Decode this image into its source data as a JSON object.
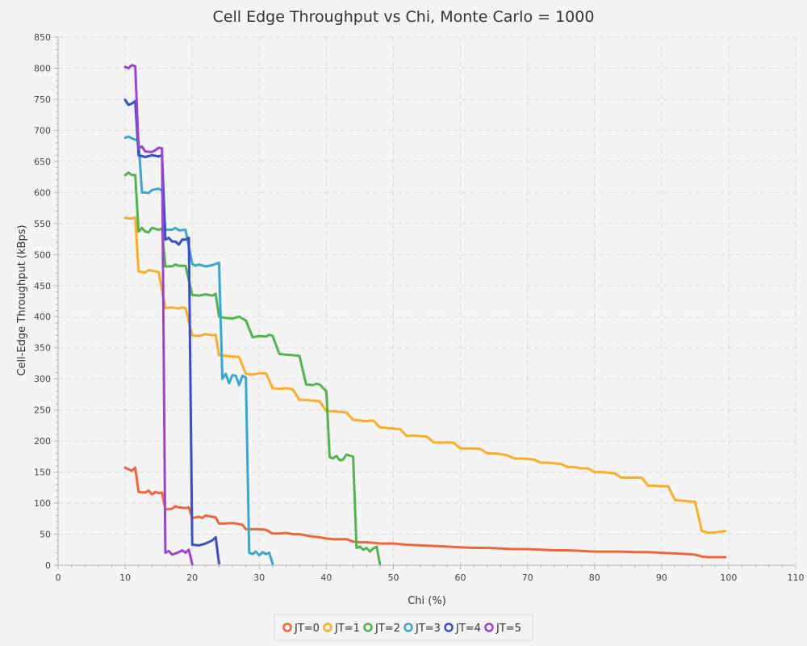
{
  "chart_data": {
    "type": "line",
    "title": "Cell Edge Throughput vs Chi, Monte Carlo = 1000",
    "xlabel": "Chi (%)",
    "ylabel": "Cell-Edge Throughput (kBps)",
    "xlim": [
      0,
      110
    ],
    "ylim": [
      0,
      850
    ],
    "x_ticks": [
      0,
      10,
      20,
      30,
      40,
      50,
      60,
      70,
      80,
      90,
      100,
      110
    ],
    "y_ticks": [
      0,
      50,
      100,
      150,
      200,
      250,
      300,
      350,
      400,
      450,
      500,
      550,
      600,
      650,
      700,
      750,
      800,
      850
    ],
    "grid": true,
    "legend_position": "bottom-center",
    "series": [
      {
        "name": "JT=0",
        "color": "#f0653b",
        "points": [
          [
            10,
            157
          ],
          [
            11,
            152
          ],
          [
            11.5,
            157
          ],
          [
            12,
            118
          ],
          [
            13,
            117
          ],
          [
            13.5,
            120
          ],
          [
            14,
            114
          ],
          [
            14.5,
            118
          ],
          [
            15,
            116
          ],
          [
            15.5,
            117
          ],
          [
            16,
            90
          ],
          [
            17,
            91
          ],
          [
            17.5,
            95
          ],
          [
            18,
            93
          ],
          [
            19,
            92
          ],
          [
            19.5,
            93
          ],
          [
            20,
            76
          ],
          [
            21,
            78
          ],
          [
            21.5,
            76
          ],
          [
            22,
            80
          ],
          [
            23,
            78
          ],
          [
            23.5,
            77
          ],
          [
            24,
            67
          ],
          [
            25,
            67
          ],
          [
            26,
            68
          ],
          [
            27,
            66
          ],
          [
            27.5,
            65
          ],
          [
            28,
            58
          ],
          [
            29,
            58
          ],
          [
            30,
            58
          ],
          [
            31,
            57
          ],
          [
            32,
            51
          ],
          [
            33,
            51
          ],
          [
            34,
            52
          ],
          [
            35,
            50
          ],
          [
            36,
            50
          ],
          [
            37,
            48
          ],
          [
            38,
            46
          ],
          [
            39,
            45
          ],
          [
            40,
            43
          ],
          [
            41,
            42
          ],
          [
            42,
            42
          ],
          [
            43,
            42
          ],
          [
            44,
            38
          ],
          [
            45,
            37
          ],
          [
            46,
            37
          ],
          [
            47,
            36
          ],
          [
            48,
            35
          ],
          [
            50,
            35
          ],
          [
            52,
            33
          ],
          [
            54,
            32
          ],
          [
            56,
            31
          ],
          [
            58,
            30
          ],
          [
            60,
            29
          ],
          [
            62,
            28
          ],
          [
            64,
            28
          ],
          [
            66,
            27
          ],
          [
            68,
            26
          ],
          [
            70,
            26
          ],
          [
            72,
            25
          ],
          [
            74,
            24
          ],
          [
            76,
            24
          ],
          [
            78,
            23
          ],
          [
            80,
            22
          ],
          [
            82,
            22
          ],
          [
            84,
            22
          ],
          [
            86,
            21
          ],
          [
            88,
            21
          ],
          [
            90,
            20
          ],
          [
            92,
            19
          ],
          [
            94,
            18
          ],
          [
            95,
            17
          ],
          [
            96,
            14
          ],
          [
            97,
            13
          ],
          [
            98,
            13
          ],
          [
            99.5,
            13
          ]
        ]
      },
      {
        "name": "JT=1",
        "color": "#f9ae25",
        "points": [
          [
            10,
            559
          ],
          [
            11,
            558
          ],
          [
            11.5,
            560
          ],
          [
            12,
            473
          ],
          [
            13,
            471
          ],
          [
            13.5,
            475
          ],
          [
            14,
            474
          ],
          [
            15,
            472
          ],
          [
            16,
            414
          ],
          [
            17,
            415
          ],
          [
            18,
            413
          ],
          [
            18.5,
            415
          ],
          [
            19,
            414
          ],
          [
            20,
            370
          ],
          [
            21,
            369
          ],
          [
            22,
            372
          ],
          [
            23,
            370
          ],
          [
            23.5,
            371
          ],
          [
            24,
            338
          ],
          [
            25,
            337
          ],
          [
            26,
            336
          ],
          [
            27,
            335
          ],
          [
            28,
            308
          ],
          [
            29,
            307
          ],
          [
            30,
            309
          ],
          [
            31,
            309
          ],
          [
            32,
            285
          ],
          [
            33,
            284
          ],
          [
            34,
            285
          ],
          [
            35,
            283
          ],
          [
            36,
            266
          ],
          [
            37,
            266
          ],
          [
            38,
            265
          ],
          [
            39,
            264
          ],
          [
            40,
            248
          ],
          [
            41,
            248
          ],
          [
            42,
            247
          ],
          [
            43,
            246
          ],
          [
            44,
            234
          ],
          [
            45,
            233
          ],
          [
            46,
            232
          ],
          [
            47,
            233
          ],
          [
            48,
            222
          ],
          [
            49,
            221
          ],
          [
            50,
            220
          ],
          [
            51,
            219
          ],
          [
            52,
            208
          ],
          [
            53,
            209
          ],
          [
            54,
            208
          ],
          [
            55,
            207
          ],
          [
            56,
            198
          ],
          [
            57,
            197
          ],
          [
            58,
            198
          ],
          [
            59,
            197
          ],
          [
            60,
            188
          ],
          [
            61,
            188
          ],
          [
            62,
            188
          ],
          [
            63,
            187
          ],
          [
            64,
            180
          ],
          [
            65,
            180
          ],
          [
            66,
            179
          ],
          [
            67,
            177
          ],
          [
            68,
            172
          ],
          [
            69,
            172
          ],
          [
            70,
            171
          ],
          [
            71,
            170
          ],
          [
            72,
            165
          ],
          [
            73,
            165
          ],
          [
            74,
            164
          ],
          [
            75,
            163
          ],
          [
            76,
            158
          ],
          [
            77,
            158
          ],
          [
            78,
            156
          ],
          [
            79,
            156
          ],
          [
            80,
            150
          ],
          [
            81,
            150
          ],
          [
            82,
            149
          ],
          [
            83,
            148
          ],
          [
            84,
            141
          ],
          [
            85,
            141
          ],
          [
            86,
            141
          ],
          [
            87,
            141
          ],
          [
            88,
            128
          ],
          [
            89,
            128
          ],
          [
            90,
            127
          ],
          [
            91,
            127
          ],
          [
            92,
            105
          ],
          [
            93,
            104
          ],
          [
            94,
            103
          ],
          [
            95,
            102
          ],
          [
            96,
            55
          ],
          [
            97,
            52
          ],
          [
            98,
            53
          ],
          [
            99.5,
            55
          ]
        ]
      },
      {
        "name": "JT=2",
        "color": "#52b34f",
        "points": [
          [
            10,
            628
          ],
          [
            10.5,
            632
          ],
          [
            11,
            628
          ],
          [
            11.5,
            628
          ],
          [
            12,
            537
          ],
          [
            12.5,
            543
          ],
          [
            13,
            537
          ],
          [
            13.5,
            536
          ],
          [
            14,
            543
          ],
          [
            15,
            540
          ],
          [
            15.5,
            542
          ],
          [
            16,
            481
          ],
          [
            17,
            481
          ],
          [
            17.5,
            484
          ],
          [
            18,
            482
          ],
          [
            19,
            482
          ],
          [
            20,
            435
          ],
          [
            21,
            434
          ],
          [
            22,
            436
          ],
          [
            23,
            434
          ],
          [
            23.5,
            437
          ],
          [
            24,
            400
          ],
          [
            25,
            398
          ],
          [
            26,
            397
          ],
          [
            27,
            400
          ],
          [
            28,
            394
          ],
          [
            29,
            367
          ],
          [
            30,
            369
          ],
          [
            31,
            368
          ],
          [
            31.5,
            371
          ],
          [
            32,
            369
          ],
          [
            33,
            340
          ],
          [
            34,
            339
          ],
          [
            35,
            338
          ],
          [
            36,
            337
          ],
          [
            37,
            291
          ],
          [
            38,
            290
          ],
          [
            38.5,
            292
          ],
          [
            39,
            291
          ],
          [
            40,
            280
          ],
          [
            40.5,
            174
          ],
          [
            41,
            172
          ],
          [
            41.5,
            176
          ],
          [
            42,
            169
          ],
          [
            42.5,
            170
          ],
          [
            43,
            178
          ],
          [
            44,
            175
          ],
          [
            44.5,
            28
          ],
          [
            45,
            30
          ],
          [
            45.5,
            25
          ],
          [
            46,
            28
          ],
          [
            46.5,
            22
          ],
          [
            47,
            27
          ],
          [
            47.5,
            30
          ],
          [
            48,
            2
          ]
        ]
      },
      {
        "name": "JT=3",
        "color": "#39a8cf",
        "points": [
          [
            10,
            688
          ],
          [
            10.5,
            690
          ],
          [
            11,
            687
          ],
          [
            12,
            683
          ],
          [
            12.5,
            600
          ],
          [
            13,
            600
          ],
          [
            13.5,
            599
          ],
          [
            14,
            604
          ],
          [
            15,
            606
          ],
          [
            15.5,
            603
          ],
          [
            16,
            540
          ],
          [
            17,
            540
          ],
          [
            17.5,
            543
          ],
          [
            18,
            539
          ],
          [
            19,
            540
          ],
          [
            20,
            485
          ],
          [
            20.5,
            482
          ],
          [
            21,
            484
          ],
          [
            22,
            481
          ],
          [
            23,
            483
          ],
          [
            24,
            487
          ],
          [
            24.5,
            300
          ],
          [
            25,
            308
          ],
          [
            25.5,
            293
          ],
          [
            26,
            306
          ],
          [
            26.5,
            305
          ],
          [
            27,
            290
          ],
          [
            27.5,
            305
          ],
          [
            28,
            302
          ],
          [
            28.5,
            20
          ],
          [
            29,
            18
          ],
          [
            29.5,
            22
          ],
          [
            30,
            16
          ],
          [
            30.5,
            21
          ],
          [
            31,
            18
          ],
          [
            31.5,
            20
          ],
          [
            32,
            2
          ]
        ]
      },
      {
        "name": "JT=4",
        "color": "#3b4fc4",
        "points": [
          [
            10,
            749
          ],
          [
            10.5,
            741
          ],
          [
            11,
            743
          ],
          [
            11.5,
            747
          ],
          [
            12,
            660
          ],
          [
            13,
            657
          ],
          [
            14,
            660
          ],
          [
            15,
            658
          ],
          [
            15.5,
            660
          ],
          [
            16,
            524
          ],
          [
            16.5,
            527
          ],
          [
            17,
            521
          ],
          [
            17.5,
            521
          ],
          [
            18,
            516
          ],
          [
            18.5,
            524
          ],
          [
            19,
            524
          ],
          [
            19.5,
            527
          ],
          [
            20,
            33
          ],
          [
            21,
            32
          ],
          [
            22,
            35
          ],
          [
            23,
            40
          ],
          [
            23.5,
            45
          ],
          [
            24,
            3
          ]
        ]
      },
      {
        "name": "JT=5",
        "color": "#9b44cc",
        "points": [
          [
            10,
            802
          ],
          [
            10.5,
            800
          ],
          [
            11,
            805
          ],
          [
            11.5,
            803
          ],
          [
            12,
            671
          ],
          [
            12.5,
            674
          ],
          [
            13,
            666
          ],
          [
            14,
            665
          ],
          [
            14.5,
            668
          ],
          [
            15,
            672
          ],
          [
            15.5,
            671
          ],
          [
            16,
            20
          ],
          [
            16.5,
            23
          ],
          [
            17,
            17
          ],
          [
            18,
            21
          ],
          [
            18.5,
            24
          ],
          [
            19,
            20
          ],
          [
            19.5,
            25
          ],
          [
            20,
            2
          ]
        ]
      }
    ]
  }
}
